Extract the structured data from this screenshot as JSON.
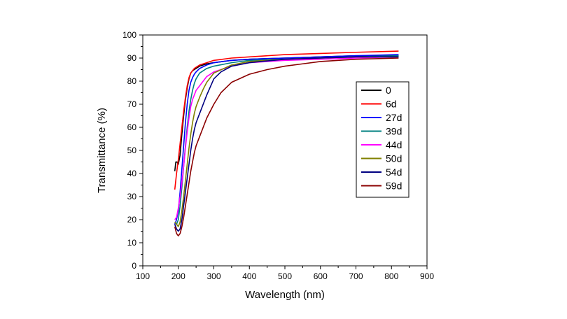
{
  "chart_data": {
    "type": "line",
    "title": "",
    "xlabel": "Wavelength (nm)",
    "ylabel": "Transmittance (%)",
    "xlim": [
      100,
      900
    ],
    "ylim": [
      0,
      100
    ],
    "xticks": [
      100,
      200,
      300,
      400,
      500,
      600,
      700,
      800,
      900
    ],
    "yticks": [
      0,
      10,
      20,
      30,
      40,
      50,
      60,
      70,
      80,
      90,
      100
    ],
    "grid": false,
    "legend_position": "right",
    "series": [
      {
        "name": "0",
        "color": "#000000",
        "x": [
          190,
          193,
          196,
          200,
          205,
          210,
          215,
          220,
          225,
          230,
          235,
          240,
          245,
          250,
          260,
          280,
          300,
          350,
          400,
          500,
          600,
          700,
          820
        ],
        "y": [
          41,
          45,
          45,
          44,
          48,
          57,
          65,
          72,
          77,
          81,
          83.5,
          84.5,
          85,
          85.5,
          86.5,
          87.5,
          88,
          89,
          89.5,
          90,
          90.5,
          91,
          91
        ]
      },
      {
        "name": "6d",
        "color": "#ff0000",
        "x": [
          190,
          195,
          200,
          205,
          210,
          215,
          220,
          225,
          230,
          235,
          240,
          245,
          250,
          260,
          280,
          300,
          350,
          400,
          500,
          600,
          700,
          820
        ],
        "y": [
          33,
          40,
          46,
          53,
          60,
          67,
          73,
          78,
          81.5,
          83.5,
          84.5,
          85.5,
          86,
          87,
          88,
          89,
          90,
          90.5,
          91.5,
          92,
          92.5,
          93
        ]
      },
      {
        "name": "27d",
        "color": "#0000ff",
        "x": [
          190,
          195,
          200,
          205,
          210,
          215,
          220,
          225,
          230,
          235,
          240,
          245,
          250,
          260,
          280,
          300,
          350,
          400,
          500,
          600,
          700,
          820
        ],
        "y": [
          18,
          20,
          24,
          32,
          42,
          52,
          62,
          70,
          76,
          79.5,
          81.5,
          83,
          84,
          85.5,
          87,
          88,
          89,
          89.5,
          90,
          90.5,
          91,
          91.5
        ]
      },
      {
        "name": "39d",
        "color": "#008080",
        "x": [
          190,
          195,
          200,
          205,
          210,
          215,
          220,
          225,
          230,
          235,
          240,
          245,
          250,
          260,
          280,
          300,
          350,
          400,
          500,
          600,
          700,
          820
        ],
        "y": [
          19,
          18,
          20,
          26,
          34,
          43,
          52,
          60,
          67,
          72,
          76,
          79,
          81,
          83.5,
          85.5,
          86.5,
          88,
          89,
          89.5,
          90,
          90.5,
          91
        ]
      },
      {
        "name": "44d",
        "color": "#ff00ff",
        "x": [
          190,
          195,
          200,
          205,
          210,
          215,
          220,
          225,
          230,
          235,
          240,
          245,
          250,
          260,
          270,
          280,
          300,
          350,
          400,
          500,
          600,
          700,
          820
        ],
        "y": [
          20,
          21,
          25,
          30,
          36,
          43,
          51,
          58,
          64,
          69,
          72,
          74,
          76,
          78,
          80,
          82,
          84,
          86.5,
          88,
          89,
          89.5,
          90,
          90.5
        ]
      },
      {
        "name": "50d",
        "color": "#808000",
        "x": [
          190,
          195,
          200,
          205,
          210,
          215,
          220,
          225,
          230,
          235,
          240,
          245,
          250,
          260,
          270,
          280,
          300,
          350,
          400,
          500,
          600,
          700,
          820
        ],
        "y": [
          19,
          18,
          17,
          19,
          24,
          30,
          37,
          44,
          51,
          57,
          62,
          66,
          69,
          73,
          76.5,
          79.5,
          83.5,
          87,
          88.5,
          89.5,
          90,
          90.5,
          90.5
        ]
      },
      {
        "name": "54d",
        "color": "#000080",
        "x": [
          190,
          195,
          200,
          205,
          210,
          215,
          220,
          225,
          230,
          235,
          240,
          245,
          250,
          260,
          270,
          280,
          300,
          320,
          350,
          400,
          500,
          600,
          700,
          820
        ],
        "y": [
          18,
          16,
          15,
          16,
          20,
          26,
          32,
          38,
          44,
          50,
          55,
          59,
          62,
          66,
          70,
          74,
          81,
          84,
          86.5,
          88,
          89.5,
          90,
          90.5,
          90.5
        ]
      },
      {
        "name": "59d",
        "color": "#8b0000",
        "x": [
          190,
          195,
          200,
          205,
          210,
          215,
          220,
          225,
          230,
          235,
          240,
          245,
          250,
          260,
          270,
          280,
          300,
          320,
          350,
          400,
          450,
          500,
          550,
          600,
          700,
          820
        ],
        "y": [
          17,
          14,
          13,
          14,
          17,
          21,
          26,
          31,
          36,
          41,
          45,
          49,
          52,
          56,
          60,
          64,
          70,
          75,
          79.5,
          83,
          85,
          86.5,
          87.5,
          88.5,
          89.5,
          90
        ]
      }
    ]
  }
}
